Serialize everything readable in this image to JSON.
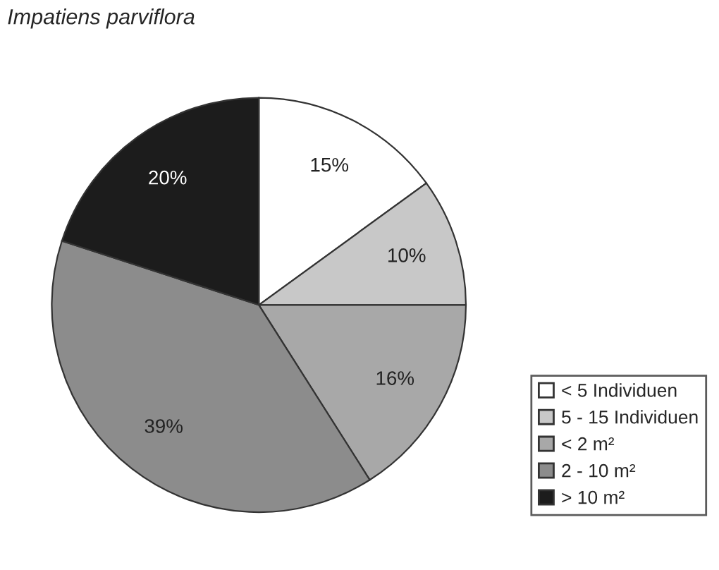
{
  "chart_data": {
    "type": "pie",
    "title": "Impatiens parviflora",
    "categories": [
      "< 5 Individuen",
      "5 - 15 Individuen",
      "< 2 m²",
      "2 - 10 m²",
      "> 10 m²"
    ],
    "values": [
      15,
      10,
      16,
      39,
      20
    ],
    "colors": [
      "#ffffff",
      "#c8c8c8",
      "#a8a8a8",
      "#8c8c8c",
      "#1c1c1c"
    ],
    "value_labels": [
      "15%",
      "10%",
      "16%",
      "39%",
      "20%"
    ],
    "legend": "bottom right"
  }
}
